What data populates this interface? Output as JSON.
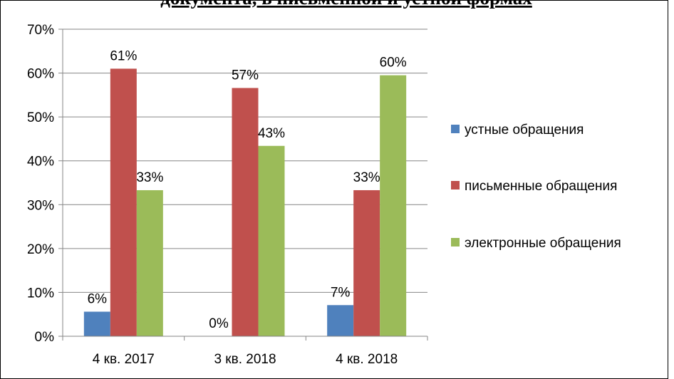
{
  "chart_data": {
    "type": "bar",
    "title": "документа, в письменной и устной формах",
    "categories": [
      "4 кв. 2017",
      "3 кв. 2018",
      "4 кв. 2018"
    ],
    "series": [
      {
        "name": "устные обращения",
        "color": "#4f81bd",
        "values": [
          5.6,
          0,
          7.1
        ],
        "value_labels": [
          "6%",
          "0%",
          "7%"
        ]
      },
      {
        "name": "письменные обращения",
        "color": "#c0504d",
        "values": [
          61.0,
          56.6,
          33.3
        ],
        "value_labels": [
          "61%",
          "57%",
          "33%"
        ]
      },
      {
        "name": "электронные обращения",
        "color": "#9bbb59",
        "values": [
          33.3,
          43.4,
          59.5
        ],
        "value_labels": [
          "33%",
          "43%",
          "60%"
        ]
      }
    ],
    "ylim": [
      0,
      70
    ],
    "yticks": [
      {
        "value": 0,
        "label": "0%"
      },
      {
        "value": 10,
        "label": "10%"
      },
      {
        "value": 20,
        "label": "20%"
      },
      {
        "value": 30,
        "label": "30%"
      },
      {
        "value": 40,
        "label": "40%"
      },
      {
        "value": 50,
        "label": "50%"
      },
      {
        "value": 60,
        "label": "60%"
      },
      {
        "value": 70,
        "label": "70%"
      }
    ],
    "grid": true,
    "legend": "right"
  }
}
